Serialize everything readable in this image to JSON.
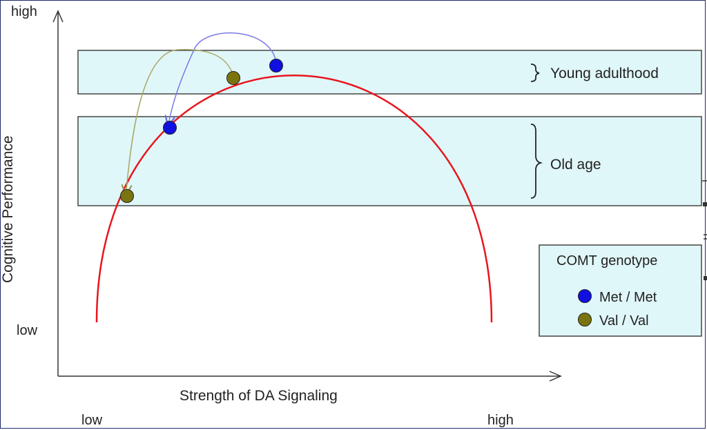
{
  "y_axis": {
    "title": "Cognitive Performance",
    "high_label": "high",
    "low_label": "low"
  },
  "x_axis": {
    "title": "Strength of DA Signaling",
    "low_label": "low",
    "high_label": "high"
  },
  "bands": [
    {
      "label": "Young adulthood"
    },
    {
      "label": "Old age"
    }
  ],
  "legend": {
    "title": "COMT genotype",
    "items": [
      {
        "label": "Met / Met",
        "color": "#1010e0"
      },
      {
        "label": "Val / Val",
        "color": "#7a7410"
      }
    ]
  },
  "colors": {
    "curve": "#e8141c",
    "band_fill": "#e0f7f9",
    "met_arrow": "#7a7ae8",
    "val_arrow": "#a8a864"
  }
}
